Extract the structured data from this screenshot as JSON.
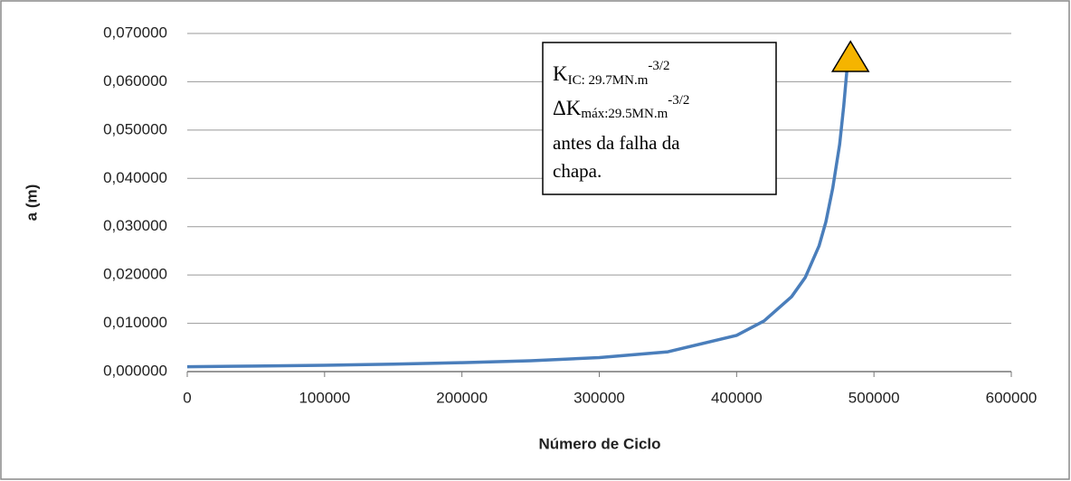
{
  "chart_data": {
    "type": "line",
    "xlabel": "Número de Ciclo",
    "ylabel": "a (m)",
    "x": [
      0,
      50000,
      100000,
      150000,
      200000,
      250000,
      300000,
      350000,
      400000,
      420000,
      440000,
      450000,
      460000,
      465000,
      470000,
      475000,
      478000,
      480500
    ],
    "series": [
      {
        "color": "#4a7ebb",
        "values": [
          0.001,
          0.00115,
          0.00132,
          0.00155,
          0.00185,
          0.00225,
          0.0029,
          0.0041,
          0.0075,
          0.0105,
          0.0155,
          0.0195,
          0.026,
          0.031,
          0.038,
          0.047,
          0.055,
          0.063
        ]
      }
    ],
    "marker": {
      "x": 482900,
      "y": 0.0648,
      "color": "#f5b400"
    },
    "xlim": [
      0,
      600000
    ],
    "xticks": [
      0,
      100000,
      200000,
      300000,
      400000,
      500000,
      600000
    ],
    "ylim": [
      0,
      0.07
    ],
    "yticks": [
      {
        "value": 0,
        "label": "0,000000"
      },
      {
        "value": 0.01,
        "label": "0,010000"
      },
      {
        "value": 0.02,
        "label": "0,020000"
      },
      {
        "value": 0.03,
        "label": "0,030000"
      },
      {
        "value": 0.04,
        "label": "0,040000"
      },
      {
        "value": 0.05,
        "label": "0,050000"
      },
      {
        "value": 0.06,
        "label": "0,060000"
      },
      {
        "value": 0.07,
        "label": "0,070000"
      }
    ],
    "grid": true,
    "annotation": {
      "line1": {
        "main": "K",
        "sub": "IC: 29.7MN.m",
        "sup": "-3/2"
      },
      "line2": {
        "main": "ΔK",
        "sub": "máx:29.5MN.m",
        "sup": "-3/2"
      },
      "line3": "antes da falha da",
      "line4": "chapa."
    }
  }
}
